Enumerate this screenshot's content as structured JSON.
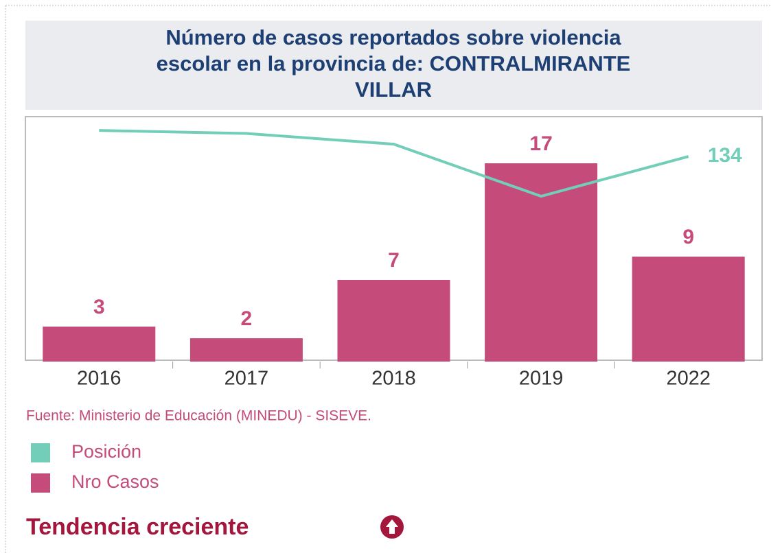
{
  "chart_data": {
    "type": "bar",
    "title": "Número de casos reportados sobre violencia escolar en la provincia de: CONTRALMIRANTE VILLAR",
    "categories": [
      "2016",
      "2017",
      "2018",
      "2019",
      "2022"
    ],
    "series": [
      {
        "name": "Posición",
        "color": "#72cdb9",
        "type": "line",
        "axis": "y2",
        "values": [
          151,
          149,
          142,
          108,
          134
        ]
      },
      {
        "name": "Nro Casos",
        "color": "#c44b7a",
        "type": "bar",
        "values": [
          3,
          2,
          7,
          17,
          9
        ]
      }
    ],
    "ylim": [
      0,
      21
    ],
    "y2lim": [
      0,
      160
    ],
    "source": "Fuente: Ministerio de Educación (MINEDU) - SISEVE.",
    "trend": "Tendencia creciente"
  }
}
